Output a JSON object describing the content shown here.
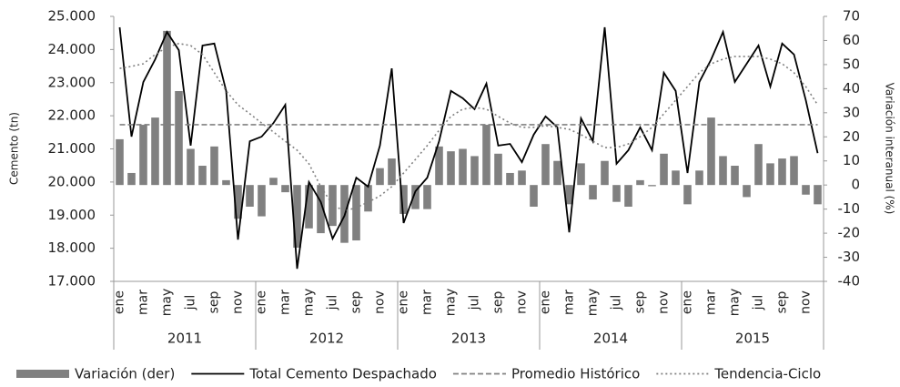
{
  "chart_data": {
    "type": "combo",
    "y_label": "Cemento (tn)",
    "y2_label": "Variación interanual (%)",
    "categories": [
      "ene",
      null,
      "mar",
      null,
      "may",
      null,
      "jul",
      null,
      "sep",
      null,
      "nov",
      null,
      "ene",
      null,
      "mar",
      null,
      "may",
      null,
      "jul",
      null,
      "sep",
      null,
      "nov",
      null,
      "ene",
      null,
      "mar",
      null,
      "may",
      null,
      "jul",
      null,
      "sep",
      null,
      "nov",
      null,
      "ene",
      null,
      "mar",
      null,
      "may",
      null,
      "jul",
      null,
      "sep",
      null,
      "nov",
      null,
      "ene",
      null,
      "mar",
      null,
      "may",
      null,
      "jul",
      null,
      "sep",
      null,
      "nov",
      null
    ],
    "groups": [
      "2011",
      "2012",
      "2013",
      "2014",
      "2015"
    ],
    "ylim": [
      17000,
      25000
    ],
    "yticks": [
      {
        "value": 17000,
        "label": "17.000"
      },
      {
        "value": 18000,
        "label": "18.000"
      },
      {
        "value": 19000,
        "label": "19.000"
      },
      {
        "value": 20000,
        "label": "20.000"
      },
      {
        "value": 21000,
        "label": "21.000"
      },
      {
        "value": 22000,
        "label": "22.000"
      },
      {
        "value": 23000,
        "label": "23.000"
      },
      {
        "value": 24000,
        "label": "24.000"
      },
      {
        "value": 25000,
        "label": "25.000"
      }
    ],
    "y2lim": [
      -40,
      70
    ],
    "y2ticks": [
      -40,
      -30,
      -20,
      -10,
      0,
      10,
      20,
      30,
      40,
      50,
      60,
      70
    ],
    "series": [
      {
        "name": "Variación (der)",
        "type": "bar",
        "axis": "y2",
        "color": "#808080",
        "values": [
          19,
          5,
          25,
          28,
          64,
          39,
          15,
          8,
          16,
          2,
          -14,
          -9,
          -13,
          3,
          -3,
          -26,
          -18,
          -20,
          -17,
          -24,
          -23,
          -11,
          7,
          11,
          -12,
          -10,
          -10,
          16,
          14,
          15,
          12,
          25,
          13,
          5,
          6,
          -9,
          17,
          10,
          -8,
          9,
          -6,
          10,
          -7,
          -9,
          2,
          -0.5,
          13,
          6,
          -8,
          6,
          28,
          12,
          8,
          -5,
          17,
          9,
          11,
          12,
          -4,
          -8
        ]
      },
      {
        "name": "Total Cemento Despachado",
        "type": "line",
        "axis": "y",
        "color": "#000000",
        "dash": "solid",
        "values": [
          24670,
          21370,
          23020,
          23700,
          24530,
          23980,
          21100,
          24120,
          24180,
          22750,
          18260,
          21230,
          21370,
          21780,
          22330,
          17380,
          20000,
          19400,
          18290,
          18980,
          20130,
          19860,
          21100,
          23430,
          18760,
          19720,
          20130,
          21230,
          22750,
          22530,
          22200,
          22970,
          21100,
          21150,
          20600,
          21430,
          21980,
          21650,
          18480,
          21920,
          21230,
          24670,
          20550,
          20960,
          21650,
          20960,
          23300,
          22750,
          20270,
          23020,
          23700,
          24530,
          23020,
          23570,
          24120,
          22880,
          24180,
          23850,
          22470,
          20870
        ]
      },
      {
        "name": "Promedio Histórico",
        "type": "line",
        "axis": "y",
        "color": "#808080",
        "dash": "dashed",
        "values": [
          21730,
          21730,
          21730,
          21730,
          21730,
          21730,
          21730,
          21730,
          21730,
          21730,
          21730,
          21730,
          21730,
          21730,
          21730,
          21730,
          21730,
          21730,
          21730,
          21730,
          21730,
          21730,
          21730,
          21730,
          21730,
          21730,
          21730,
          21730,
          21730,
          21730,
          21730,
          21730,
          21730,
          21730,
          21730,
          21730,
          21730,
          21730,
          21730,
          21730,
          21730,
          21730,
          21730,
          21730,
          21730,
          21730,
          21730,
          21730,
          21730,
          21730,
          21730,
          21730,
          21730,
          21730,
          21730,
          21730,
          21730,
          21730,
          21730,
          21730
        ]
      },
      {
        "name": "Tendencia-Ciclo",
        "type": "line",
        "axis": "y",
        "color": "#808080",
        "dash": "dotted",
        "values": [
          23430,
          23490,
          23570,
          23850,
          24070,
          24180,
          24120,
          23850,
          23300,
          22750,
          22330,
          22060,
          21780,
          21510,
          21230,
          20960,
          20550,
          19860,
          19310,
          19120,
          19230,
          19390,
          19580,
          19860,
          20270,
          20680,
          21100,
          21560,
          21980,
          22200,
          22250,
          22200,
          21980,
          21780,
          21650,
          21650,
          21700,
          21650,
          21590,
          21430,
          21230,
          21040,
          21040,
          21150,
          21370,
          21650,
          22060,
          22470,
          22880,
          23300,
          23570,
          23710,
          23790,
          23790,
          23790,
          23710,
          23570,
          23300,
          22880,
          22330
        ]
      }
    ]
  }
}
